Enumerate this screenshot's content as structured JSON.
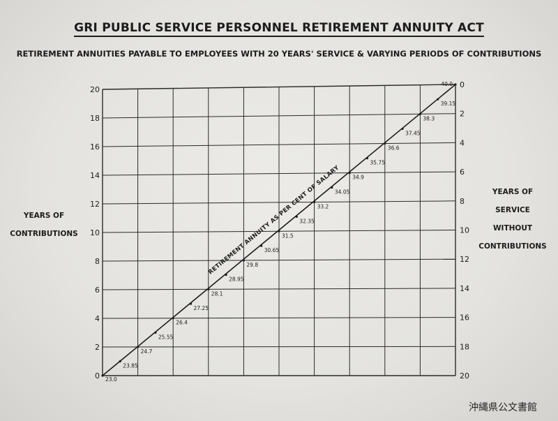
{
  "header": {
    "title": "GRI PUBLIC SERVICE PERSONNEL RETIREMENT ANNUITY ACT",
    "subtitle": "RETIREMENT ANNUITIES PAYABLE TO EMPLOYEES WITH 20 YEARS' SERVICE & VARYING PERIODS OF CONTRIBUTIONS"
  },
  "watermark": "沖縄県公文書館",
  "chart_data": {
    "type": "line",
    "left_axis": {
      "label_lines": [
        "YEARS OF",
        "CONTRIBUTIONS"
      ],
      "ticks": [
        0,
        2,
        4,
        6,
        8,
        10,
        12,
        14,
        16,
        18,
        20
      ],
      "range": [
        0,
        20
      ]
    },
    "right_axis": {
      "label_lines": [
        "YEARS OF",
        "SERVICE",
        "WITHOUT",
        "CONTRIBUTIONS"
      ],
      "ticks": [
        0,
        2,
        4,
        6,
        8,
        10,
        12,
        14,
        16,
        18,
        20
      ],
      "range": [
        20,
        0
      ]
    },
    "line_label": "RETIREMENT ANNUITY AS PER CENT OF SALARY",
    "grid": true,
    "points": [
      {
        "contrib": 0,
        "annuity": 23.0,
        "label": "23.0"
      },
      {
        "contrib": 1,
        "annuity": 23.85,
        "label": "23.85"
      },
      {
        "contrib": 2,
        "annuity": 24.7,
        "label": "24.7"
      },
      {
        "contrib": 3,
        "annuity": 25.55,
        "label": "25.55"
      },
      {
        "contrib": 4,
        "annuity": 26.4,
        "label": "26.4"
      },
      {
        "contrib": 5,
        "annuity": 27.25,
        "label": "27.25"
      },
      {
        "contrib": 6,
        "annuity": 28.1,
        "label": "28.1"
      },
      {
        "contrib": 7,
        "annuity": 28.95,
        "label": "28.95"
      },
      {
        "contrib": 8,
        "annuity": 29.8,
        "label": "29.8"
      },
      {
        "contrib": 9,
        "annuity": 30.65,
        "label": "30.65"
      },
      {
        "contrib": 10,
        "annuity": 31.5,
        "label": "31.5"
      },
      {
        "contrib": 11,
        "annuity": 32.35,
        "label": "32.35"
      },
      {
        "contrib": 12,
        "annuity": 33.2,
        "label": "33.2"
      },
      {
        "contrib": 13,
        "annuity": 34.05,
        "label": "34.05"
      },
      {
        "contrib": 14,
        "annuity": 34.9,
        "label": "34.9"
      },
      {
        "contrib": 15,
        "annuity": 35.75,
        "label": "35.75"
      },
      {
        "contrib": 16,
        "annuity": 36.6,
        "label": "36.6"
      },
      {
        "contrib": 17,
        "annuity": 37.45,
        "label": "37.45"
      },
      {
        "contrib": 18,
        "annuity": 38.3,
        "label": "38.3"
      },
      {
        "contrib": 19,
        "annuity": 39.15,
        "label": "39.15"
      },
      {
        "contrib": 20,
        "annuity": 40.0,
        "label": "40.0"
      }
    ]
  }
}
